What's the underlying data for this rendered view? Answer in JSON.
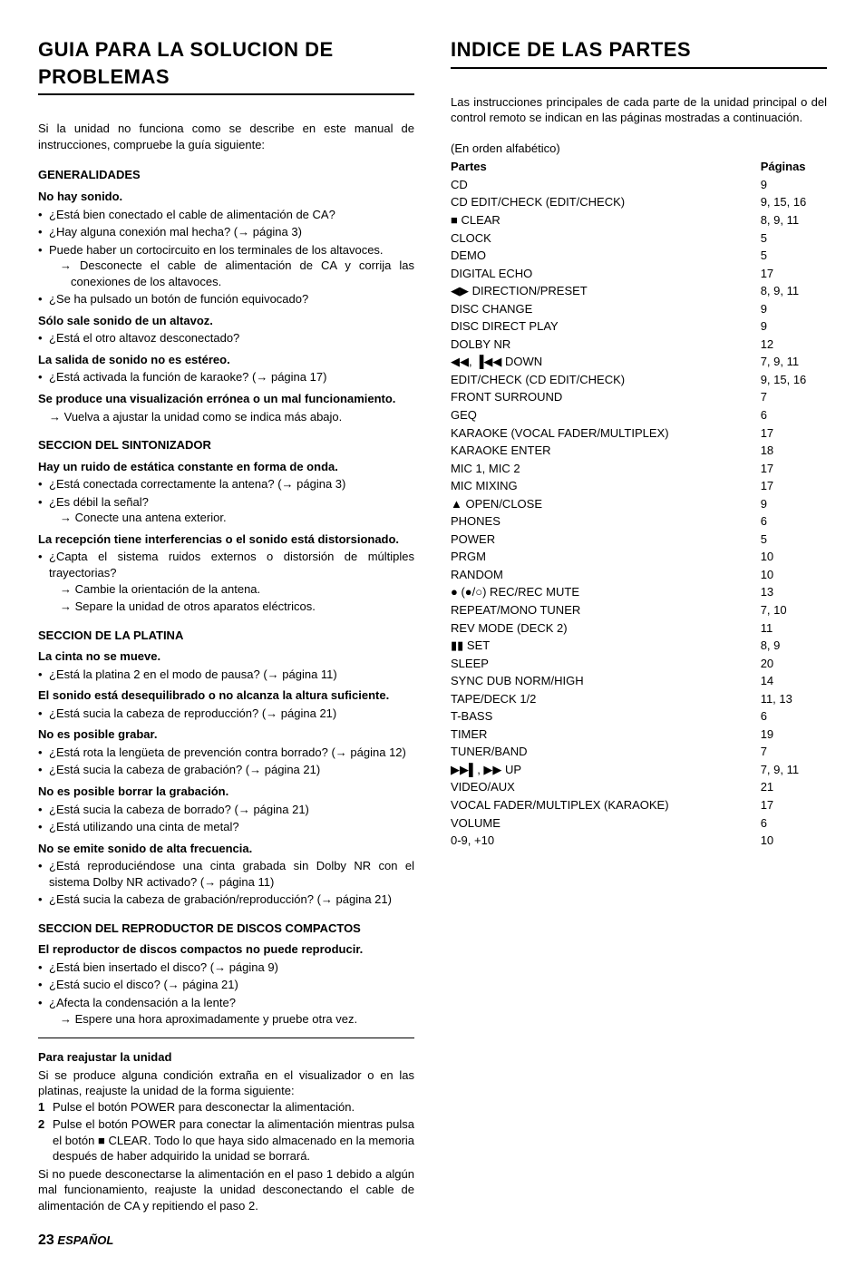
{
  "left": {
    "title": "GUIA PARA LA SOLUCION DE PROBLEMAS",
    "intro": "Si la unidad no funciona como se describe en este manual de instrucciones, compruebe la guía siguiente:",
    "s1": {
      "head": "GENERALIDADES",
      "g1": {
        "sub": "No hay sonido.",
        "b1": "¿Está bien conectado el cable de alimentación de CA?",
        "b2": "¿Hay alguna conexión mal hecha?  (→ página 3)",
        "b3": "Puede haber un cortocircuito en los terminales de los altavoces.",
        "b3a": "Desconecte el cable de alimentación de CA y corrija las conexiones de los altavoces.",
        "b4": "¿Se ha pulsado un botón de función equivocado?"
      },
      "g2": {
        "sub": "Sólo sale sonido de un altavoz.",
        "b1": "¿Está el otro altavoz desconectado?"
      },
      "g3": {
        "sub": "La salida de sonido no es estéreo.",
        "b1": "¿Está activada la función de karaoke?  (→ página 17)"
      },
      "g4": {
        "sub": "Se produce una visualización errónea o un mal funcionamiento.",
        "a1": "Vuelva a ajustar la unidad como se indica más abajo."
      }
    },
    "s2": {
      "head": "SECCION DEL SINTONIZADOR",
      "g1": {
        "sub": "Hay un ruido de estática constante en forma de onda.",
        "b1": "¿Está conectada correctamente la antena?  (→ página 3)",
        "b2": "¿Es débil la señal?",
        "a1": "Conecte una antena exterior."
      },
      "g2": {
        "sub": "La recepción tiene interferencias o el sonido está distorsionado.",
        "b1": "¿Capta el sistema ruidos externos o distorsión de múltiples trayectorias?",
        "a1": "Cambie la orientación de la antena.",
        "a2": "Separe la unidad de otros aparatos eléctricos."
      }
    },
    "s3": {
      "head": "SECCION DE LA PLATINA",
      "g1": {
        "sub": "La cinta no se mueve.",
        "b1": "¿Está la platina 2 en el modo de pausa?  (→ página 11)"
      },
      "g2": {
        "sub": "El sonido está desequilibrado o no alcanza la altura suficiente.",
        "b1": "¿Está sucia la cabeza de reproducción?  (→ página 21)"
      },
      "g3": {
        "sub": "No es posible grabar.",
        "b1": "¿Está rota la lengüeta de prevención contra borrado?  (→ página 12)",
        "b2": "¿Está sucia la cabeza de grabación?  (→ página 21)"
      },
      "g4": {
        "sub": "No es posible borrar la grabación.",
        "b1": "¿Está sucia la cabeza de borrado?  (→ página 21)",
        "b2": "¿Está utilizando una cinta de metal?"
      },
      "g5": {
        "sub": "No se emite sonido de alta frecuencia.",
        "b1": "¿Está reproduciéndose una cinta grabada sin Dolby NR con el sistema Dolby NR activado?  (→ página 11)",
        "b2": "¿Está sucia la cabeza de grabación/reproducción?  (→ página 21)"
      }
    },
    "s4": {
      "head": "SECCION DEL REPRODUCTOR DE DISCOS COMPACTOS",
      "g1": {
        "sub": "El reproductor de discos compactos no puede reproducir.",
        "b1": "¿Está bien insertado el disco?  (→ página 9)",
        "b2": "¿Está sucio el disco?  (→ página 21)",
        "b3": "¿Afecta la condensación a la lente?",
        "a1": "Espere una hora aproximadamente y pruebe otra vez."
      }
    },
    "reset": {
      "sub": "Para reajustar la unidad",
      "p1": "Si se produce alguna condición extraña en el visualizador o en las platinas, reajuste la unidad de la forma siguiente:",
      "st1": "Pulse el botón POWER para desconectar la alimentación.",
      "st2": "Pulse el botón POWER para conectar la alimentación mientras pulsa el botón ■ CLEAR. Todo lo que haya sido almacenado en la memoria después de haber adquirido la unidad se borrará.",
      "p2": "Si no puede desconectarse la alimentación en el paso 1 debido a algún mal funcionamiento, reajuste la unidad desconectando el cable de alimentación de CA y repitiendo el paso 2."
    }
  },
  "right": {
    "title": "INDICE DE LAS PARTES",
    "intro": "Las instrucciones principales de cada parte de la unidad principal o del control remoto se indican en las páginas mostradas a continuación.",
    "order": "(En orden alfabético)",
    "header_parts": "Partes",
    "header_pages": "Páginas",
    "rows": [
      {
        "p": "CD",
        "g": "9"
      },
      {
        "p": "CD EDIT/CHECK (EDIT/CHECK)",
        "g": "9, 15, 16"
      },
      {
        "p": "■ CLEAR",
        "g": "8, 9, 11"
      },
      {
        "p": "CLOCK",
        "g": "5"
      },
      {
        "p": "DEMO",
        "g": "5"
      },
      {
        "p": "DIGITAL ECHO",
        "g": "17"
      },
      {
        "p": "◀▶ DIRECTION/PRESET",
        "g": "8, 9, 11"
      },
      {
        "p": "DISC CHANGE",
        "g": "9"
      },
      {
        "p": "DISC DIRECT PLAY",
        "g": "9"
      },
      {
        "p": "DOLBY NR",
        "g": "12"
      },
      {
        "p": "◀◀, ▐◀◀ DOWN",
        "g": "7, 9, 11"
      },
      {
        "p": "EDIT/CHECK (CD EDIT/CHECK)",
        "g": "9, 15, 16"
      },
      {
        "p": "FRONT SURROUND",
        "g": "7"
      },
      {
        "p": "GEQ",
        "g": "6"
      },
      {
        "p": "KARAOKE (VOCAL FADER/MULTIPLEX)",
        "g": "17"
      },
      {
        "p": "KARAOKE ENTER",
        "g": "18"
      },
      {
        "p": "MIC 1, MIC 2",
        "g": "17"
      },
      {
        "p": "MIC MIXING",
        "g": "17"
      },
      {
        "p": "▲ OPEN/CLOSE",
        "g": "9"
      },
      {
        "p": "PHONES",
        "g": "6"
      },
      {
        "p": "POWER",
        "g": "5"
      },
      {
        "p": "PRGM",
        "g": "10"
      },
      {
        "p": "RANDOM",
        "g": "10"
      },
      {
        "p": "● (●/○) REC/REC MUTE",
        "g": "13"
      },
      {
        "p": "REPEAT/MONO TUNER",
        "g": "7, 10"
      },
      {
        "p": "REV MODE (DECK 2)",
        "g": "11"
      },
      {
        "p": "▮▮ SET",
        "g": "8, 9"
      },
      {
        "p": "SLEEP",
        "g": "20"
      },
      {
        "p": "SYNC DUB NORM/HIGH",
        "g": "14"
      },
      {
        "p": "TAPE/DECK 1/2",
        "g": "11, 13"
      },
      {
        "p": "T-BASS",
        "g": "6"
      },
      {
        "p": "TIMER",
        "g": "19"
      },
      {
        "p": "TUNER/BAND",
        "g": "7"
      },
      {
        "p": "▶▶▌, ▶▶ UP",
        "g": "7, 9, 11"
      },
      {
        "p": "VIDEO/AUX",
        "g": "21"
      },
      {
        "p": "VOCAL FADER/MULTIPLEX (KARAOKE)",
        "g": "17"
      },
      {
        "p": "VOLUME",
        "g": "6"
      },
      {
        "p": "0-9, +10",
        "g": "10"
      }
    ]
  },
  "footer": {
    "page": "23",
    "lang": "ESPAÑOL"
  }
}
